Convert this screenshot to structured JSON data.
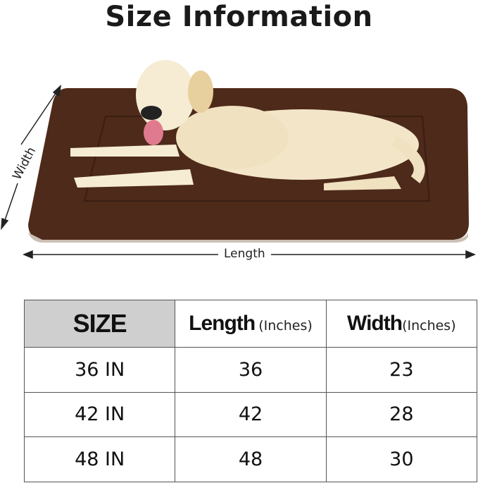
{
  "title": "Size Information",
  "dimension_labels": {
    "length": "Length",
    "width": "Width"
  },
  "colors": {
    "mat": "#4e2a1a",
    "dog": "#f3e6c8",
    "header_bg": "#cfcfcf"
  },
  "table": {
    "headers": [
      {
        "main": "SIZE",
        "unit": ""
      },
      {
        "main": "Length",
        "unit": "(Inches)"
      },
      {
        "main": "Width",
        "unit": "(Inches)"
      }
    ],
    "rows": [
      [
        "36 IN",
        "36",
        "23"
      ],
      [
        "42 IN",
        "42",
        "28"
      ],
      [
        "48 IN",
        "48",
        "30"
      ]
    ]
  }
}
